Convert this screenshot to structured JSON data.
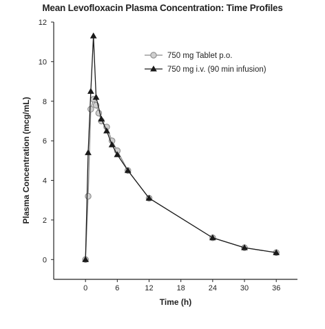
{
  "chart_data": {
    "type": "line",
    "title": "Mean Levofloxacin Plasma Concentration: Time Profiles",
    "xlabel": "Time (h)",
    "ylabel": "Plasma Concentration (mcg/mL)",
    "xlim": [
      -6,
      40
    ],
    "ylim": [
      -1,
      12
    ],
    "xticks": [
      0,
      6,
      12,
      18,
      24,
      30,
      36
    ],
    "yticks": [
      0,
      2,
      4,
      6,
      8,
      10,
      12
    ],
    "grid": false,
    "legend_position": "top-right",
    "series": [
      {
        "name": "750 mg Tablet p.o.",
        "marker": "circle",
        "color": "#8a8a8a",
        "marker_fill": "#cfcfcf",
        "x": [
          0,
          0.5,
          1,
          1.5,
          2,
          2.5,
          3,
          4,
          5,
          6,
          8,
          12,
          24,
          30,
          36
        ],
        "y": [
          0.0,
          3.2,
          7.6,
          8.1,
          7.8,
          7.4,
          7.0,
          6.7,
          6.0,
          5.5,
          4.5,
          3.1,
          1.1,
          0.6,
          0.35
        ]
      },
      {
        "name": "750 mg i.v. (90 min infusion)",
        "marker": "triangle",
        "color": "#1a1a1a",
        "marker_fill": "#1a1a1a",
        "x": [
          0,
          0.5,
          1,
          1.5,
          2,
          3,
          4,
          5,
          6,
          8,
          12,
          24,
          30,
          36
        ],
        "y": [
          0.0,
          5.4,
          8.5,
          11.3,
          8.2,
          7.1,
          6.5,
          5.8,
          5.3,
          4.5,
          3.1,
          1.1,
          0.6,
          0.35
        ]
      }
    ]
  }
}
